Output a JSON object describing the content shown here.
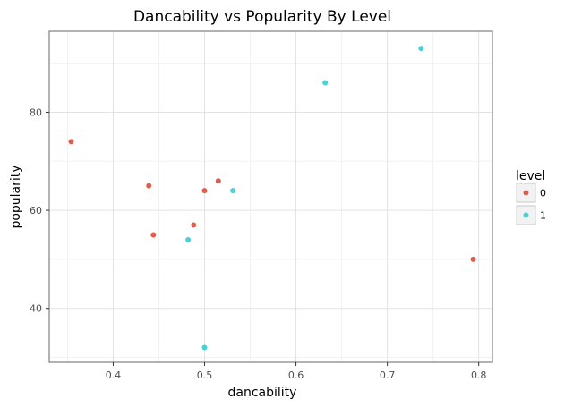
{
  "chart_data": {
    "type": "scatter",
    "title": "Dancability vs Popularity By Level",
    "xlabel": "dancability",
    "ylabel": "popularity",
    "xlim": [
      0.33,
      0.815
    ],
    "ylim": [
      29,
      96.5
    ],
    "xticks": [
      0.4,
      0.5,
      0.6,
      0.7,
      0.8
    ],
    "xtick_labels": [
      "0.4",
      "0.5",
      "0.6",
      "0.7",
      "0.8"
    ],
    "yticks": [
      40,
      60,
      80
    ],
    "ytick_labels": [
      "40",
      "60",
      "80"
    ],
    "grid": true,
    "legend": {
      "title": "level",
      "placement": "right"
    },
    "series": [
      {
        "name": "0",
        "color": "#e05c4f",
        "points": [
          {
            "x": 0.354,
            "y": 74
          },
          {
            "x": 0.439,
            "y": 65
          },
          {
            "x": 0.444,
            "y": 55
          },
          {
            "x": 0.488,
            "y": 57
          },
          {
            "x": 0.5,
            "y": 64
          },
          {
            "x": 0.515,
            "y": 66
          },
          {
            "x": 0.794,
            "y": 50
          }
        ]
      },
      {
        "name": "1",
        "color": "#4ccfd6",
        "points": [
          {
            "x": 0.482,
            "y": 54
          },
          {
            "x": 0.5,
            "y": 32
          },
          {
            "x": 0.531,
            "y": 64
          },
          {
            "x": 0.632,
            "y": 86
          },
          {
            "x": 0.737,
            "y": 93
          }
        ]
      }
    ]
  }
}
